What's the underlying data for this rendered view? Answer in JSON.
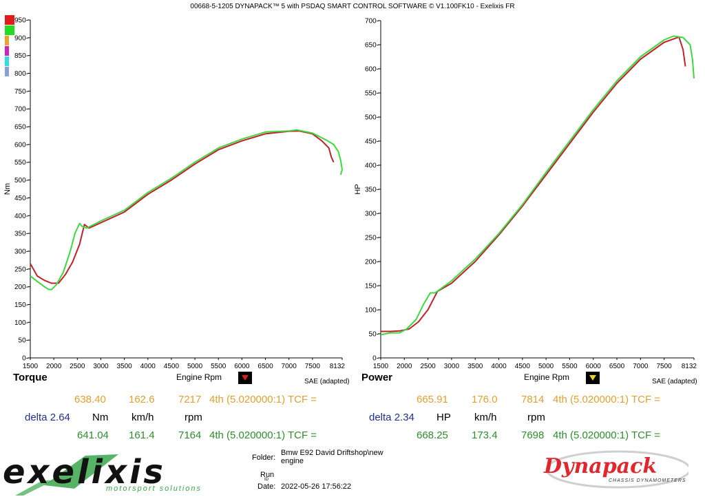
{
  "header": {
    "title": "00668-5-1205 DYNAPACK™ 5 with PSDAQ SMART CONTROL SOFTWARE © V1.100FK10 - Exelixis FR"
  },
  "colors": {
    "run1": "#c0202a",
    "run2": "#3ed83e",
    "readout_run1": "#e0a030",
    "readout_run2": "#2e8b2e",
    "delta": "#1f2f8f",
    "swatches": [
      "#e01c1c",
      "#22dd22",
      "#f0a030",
      "#d020c0",
      "#30e0e0",
      "#8aa0d8"
    ]
  },
  "chart_data": [
    {
      "type": "line",
      "panel_title": "Torque",
      "xlabel": "Engine Rpm",
      "ylabel": "Nm",
      "note": "SAE (adapted)",
      "marker_icon": "red-down-arrow-icon",
      "xlim": [
        1500,
        8132
      ],
      "ylim": [
        0,
        950
      ],
      "xticks": [
        1500,
        2000,
        2500,
        3000,
        3500,
        4000,
        4500,
        5000,
        5500,
        6000,
        6500,
        7000,
        7500,
        8132
      ],
      "yticks": [
        0,
        50,
        100,
        150,
        200,
        250,
        300,
        350,
        400,
        450,
        500,
        550,
        600,
        650,
        700,
        750,
        800,
        850,
        900,
        950
      ],
      "grid": false,
      "series": [
        {
          "color": "#c0202a",
          "x": [
            1500,
            1650,
            1800,
            1950,
            2100,
            2250,
            2400,
            2550,
            2650,
            2750,
            3000,
            3500,
            4000,
            4500,
            5000,
            5500,
            6000,
            6500,
            7000,
            7217,
            7500,
            7700,
            7850,
            7900,
            7950
          ],
          "y": [
            265,
            230,
            218,
            210,
            210,
            235,
            270,
            320,
            375,
            365,
            380,
            410,
            460,
            500,
            545,
            585,
            610,
            630,
            637,
            638,
            630,
            610,
            590,
            565,
            550
          ]
        },
        {
          "color": "#3ed83e",
          "x": [
            1500,
            1650,
            1800,
            1880,
            1950,
            2050,
            2200,
            2350,
            2450,
            2550,
            2600,
            2700,
            3000,
            3500,
            4000,
            4500,
            5000,
            5500,
            6000,
            6500,
            7000,
            7164,
            7500,
            7800,
            7950,
            8050,
            8100,
            8132,
            8100
          ],
          "y": [
            230,
            215,
            200,
            193,
            192,
            205,
            240,
            300,
            350,
            378,
            370,
            365,
            385,
            415,
            465,
            505,
            550,
            590,
            615,
            635,
            638,
            641,
            632,
            612,
            600,
            580,
            555,
            530,
            515
          ]
        }
      ]
    },
    {
      "type": "line",
      "panel_title": "Power",
      "xlabel": "Engine Rpm",
      "ylabel": "HP",
      "note": "SAE (adapted)",
      "marker_icon": "yellow-down-arrow-icon",
      "xlim": [
        1500,
        8132
      ],
      "ylim": [
        0,
        700
      ],
      "xticks": [
        1500,
        2000,
        2500,
        3000,
        3500,
        4000,
        4500,
        5000,
        5500,
        6000,
        6500,
        7000,
        7500,
        8132
      ],
      "yticks": [
        0,
        50,
        100,
        150,
        200,
        250,
        300,
        350,
        400,
        450,
        500,
        550,
        600,
        650,
        700
      ],
      "grid": false,
      "series": [
        {
          "color": "#c0202a",
          "x": [
            1500,
            1700,
            1900,
            2100,
            2300,
            2500,
            2700,
            3000,
            3500,
            4000,
            4500,
            5000,
            5500,
            6000,
            6500,
            7000,
            7500,
            7814,
            7900,
            7950
          ],
          "y": [
            55,
            55,
            56,
            60,
            75,
            100,
            138,
            155,
            200,
            255,
            315,
            380,
            445,
            510,
            570,
            620,
            655,
            666,
            640,
            605
          ]
        },
        {
          "color": "#3ed83e",
          "x": [
            1500,
            1700,
            1900,
            2050,
            2250,
            2400,
            2550,
            2650,
            3000,
            3500,
            4000,
            4500,
            5000,
            5500,
            6000,
            6500,
            7000,
            7500,
            7698,
            7900,
            8050,
            8100,
            8132
          ],
          "y": [
            48,
            52,
            52,
            60,
            80,
            110,
            135,
            135,
            160,
            205,
            258,
            318,
            385,
            450,
            515,
            575,
            625,
            660,
            668,
            665,
            650,
            620,
            580
          ]
        }
      ]
    }
  ],
  "readouts": {
    "torque": {
      "run1": [
        "638.40",
        "162.6",
        "7217",
        "4th (5.020000:1) TCF ="
      ],
      "delta": [
        "delta 2.64",
        "Nm",
        "km/h",
        "rpm"
      ],
      "run2": [
        "641.04",
        "161.4",
        "7164",
        "4th (5.020000:1) TCF ="
      ]
    },
    "power": {
      "run1": [
        "665.91",
        "176.0",
        "7814",
        "4th (5.020000:1) TCF ="
      ],
      "delta": [
        "delta 2.34",
        "HP",
        "km/h",
        "rpm"
      ],
      "run2": [
        "668.25",
        "173.4",
        "7698",
        "4th (5.020000:1) TCF ="
      ]
    }
  },
  "footer": {
    "left_logo": {
      "text": "exelixis",
      "tagline": "motorsport solutions"
    },
    "folder_label": "Folder:",
    "folder_value": "Bmw E92 David Driftshop\\new engine",
    "run_label": "Run",
    "run_sub": "ID",
    "date_label": "Date:",
    "date_value": "2022-05-26 17:56:22",
    "right_logo": {
      "text": "Dynapack",
      "tagline": "CHASSIS DYNAMOMETERS"
    }
  }
}
